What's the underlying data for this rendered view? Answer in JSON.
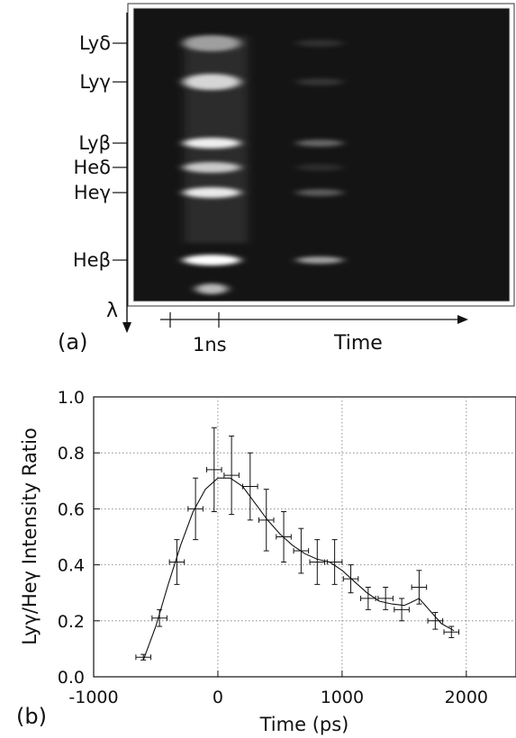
{
  "panel_a": {
    "label": "(a)",
    "lines": [
      {
        "name": "Lyδ",
        "intensity": [
          0.55,
          0.12
        ]
      },
      {
        "name": "Lyγ",
        "intensity": [
          0.8,
          0.14
        ]
      },
      {
        "name": "Lyβ",
        "intensity": [
          0.92,
          0.35
        ]
      },
      {
        "name": "Heδ",
        "intensity": [
          0.75,
          0.1
        ]
      },
      {
        "name": "Heγ",
        "intensity": [
          0.9,
          0.3
        ]
      },
      {
        "name": "Heβ",
        "intensity": [
          1.0,
          0.6
        ]
      },
      {
        "name": "",
        "intensity": [
          0.7,
          0.0
        ]
      }
    ],
    "wavelength_axis_label": "λ",
    "time_axis_label": "Time",
    "scale_bar_label": "1ns"
  },
  "chart_data": {
    "type": "line",
    "label": "(b)",
    "title": "",
    "xlabel": "Time (ps)",
    "ylabel": "Lyγ/Heγ Intensity Ratio",
    "xlim": [
      -1000,
      2400
    ],
    "ylim": [
      0.0,
      1.0
    ],
    "xticks": [
      -1000,
      0,
      1000,
      2000
    ],
    "xtick_labels": [
      "-1000",
      "0",
      "1000",
      "2000"
    ],
    "yticks": [
      0.0,
      0.2,
      0.4,
      0.6,
      0.8,
      1.0
    ],
    "ytick_labels": [
      "0.0",
      "0.2",
      "0.4",
      "0.6",
      "0.8",
      "1.0"
    ],
    "grid": true,
    "series": [
      {
        "points": [
          {
            "x": -600,
            "y": 0.07,
            "xerr": 60,
            "yerr": 0.01
          },
          {
            "x": -470,
            "y": 0.21,
            "xerr": 60,
            "yerr": 0.03
          },
          {
            "x": -330,
            "y": 0.41,
            "xerr": 60,
            "yerr": 0.08
          },
          {
            "x": -180,
            "y": 0.6,
            "xerr": 60,
            "yerr": 0.11
          },
          {
            "x": -30,
            "y": 0.74,
            "xerr": 60,
            "yerr": 0.15
          },
          {
            "x": 110,
            "y": 0.72,
            "xerr": 60,
            "yerr": 0.14
          },
          {
            "x": 260,
            "y": 0.68,
            "xerr": 60,
            "yerr": 0.12
          },
          {
            "x": 390,
            "y": 0.56,
            "xerr": 60,
            "yerr": 0.11
          },
          {
            "x": 530,
            "y": 0.5,
            "xerr": 60,
            "yerr": 0.09
          },
          {
            "x": 670,
            "y": 0.45,
            "xerr": 60,
            "yerr": 0.08
          },
          {
            "x": 800,
            "y": 0.41,
            "xerr": 60,
            "yerr": 0.08
          },
          {
            "x": 940,
            "y": 0.41,
            "xerr": 60,
            "yerr": 0.08
          },
          {
            "x": 1070,
            "y": 0.35,
            "xerr": 60,
            "yerr": 0.05
          },
          {
            "x": 1210,
            "y": 0.28,
            "xerr": 60,
            "yerr": 0.04
          },
          {
            "x": 1350,
            "y": 0.28,
            "xerr": 60,
            "yerr": 0.04
          },
          {
            "x": 1480,
            "y": 0.24,
            "xerr": 60,
            "yerr": 0.04
          },
          {
            "x": 1620,
            "y": 0.32,
            "xerr": 60,
            "yerr": 0.06
          },
          {
            "x": 1750,
            "y": 0.2,
            "xerr": 60,
            "yerr": 0.03
          },
          {
            "x": 1880,
            "y": 0.16,
            "xerr": 60,
            "yerr": 0.02
          }
        ],
        "fit_curve": [
          {
            "x": -600,
            "y": 0.06
          },
          {
            "x": -500,
            "y": 0.18
          },
          {
            "x": -400,
            "y": 0.33
          },
          {
            "x": -300,
            "y": 0.47
          },
          {
            "x": -200,
            "y": 0.59
          },
          {
            "x": -100,
            "y": 0.67
          },
          {
            "x": 0,
            "y": 0.71
          },
          {
            "x": 100,
            "y": 0.71
          },
          {
            "x": 200,
            "y": 0.68
          },
          {
            "x": 300,
            "y": 0.62
          },
          {
            "x": 400,
            "y": 0.56
          },
          {
            "x": 500,
            "y": 0.51
          },
          {
            "x": 600,
            "y": 0.47
          },
          {
            "x": 700,
            "y": 0.44
          },
          {
            "x": 800,
            "y": 0.42
          },
          {
            "x": 900,
            "y": 0.41
          },
          {
            "x": 1000,
            "y": 0.38
          },
          {
            "x": 1100,
            "y": 0.34
          },
          {
            "x": 1200,
            "y": 0.3
          },
          {
            "x": 1300,
            "y": 0.27
          },
          {
            "x": 1400,
            "y": 0.26
          },
          {
            "x": 1500,
            "y": 0.255
          },
          {
            "x": 1550,
            "y": 0.265
          },
          {
            "x": 1620,
            "y": 0.28
          },
          {
            "x": 1700,
            "y": 0.24
          },
          {
            "x": 1800,
            "y": 0.19
          },
          {
            "x": 1900,
            "y": 0.165
          }
        ]
      }
    ]
  }
}
